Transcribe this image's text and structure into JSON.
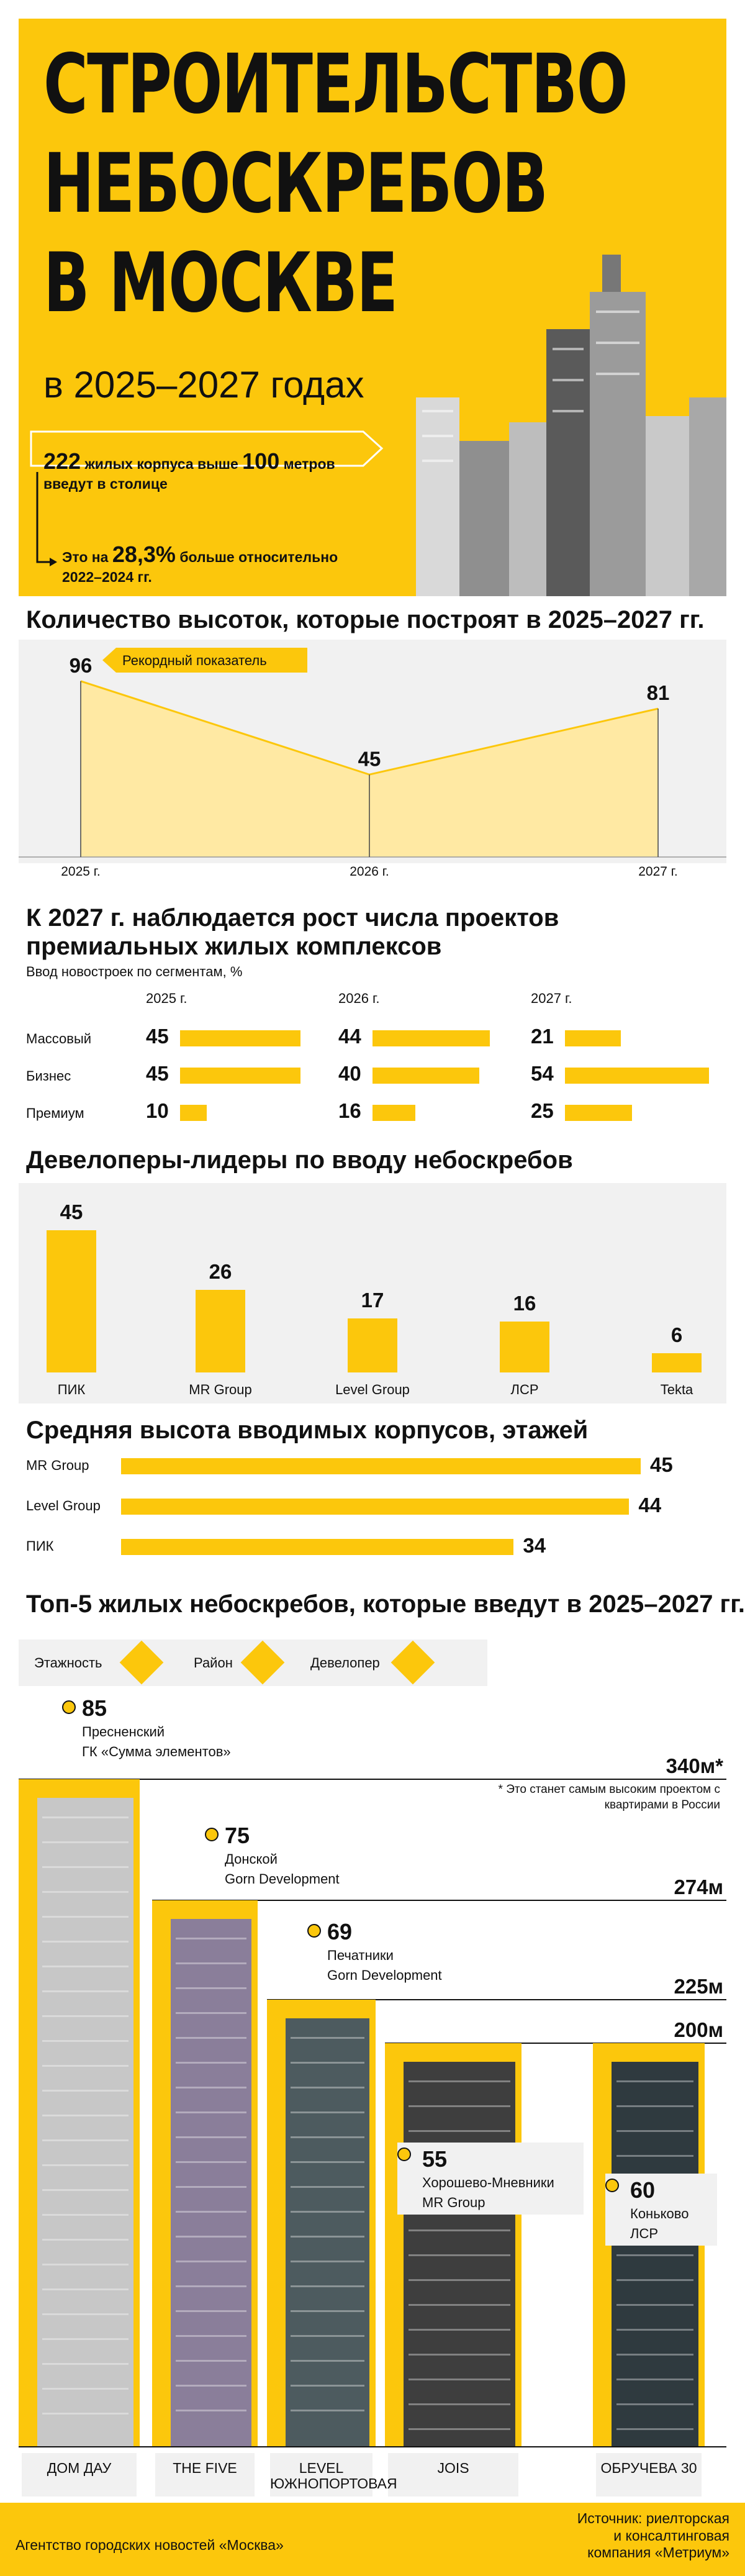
{
  "hero": {
    "title_lines": [
      "СТРОИТЕЛЬСТВО",
      "НЕБОСКРЕБОВ",
      "В МОСКВЕ"
    ],
    "subtitle": "в 2025–2027 годах",
    "fact1": {
      "number": "222",
      "text_a": "жилых корпуса выше",
      "number2": "100",
      "text_b": "метров",
      "text_c": "введут в столице"
    },
    "fact2": {
      "text_a": "Это на",
      "number": "28,3%",
      "text_b": "больше относительно",
      "text_c": "2022–2024 гг."
    }
  },
  "chart_data": [
    {
      "type": "area",
      "title": "Количество высоток, которые построят в 2025–2027 гг.",
      "categories": [
        "2025 г.",
        "2026 г.",
        "2027 г."
      ],
      "values": [
        96,
        45,
        81
      ],
      "ylim": [
        0,
        100
      ],
      "annotation": "Рекордный показатель",
      "color": "#fcc70c"
    },
    {
      "type": "bar",
      "title": "К 2027 г. наблюдается рост числа проектов премиальных жилых комплексов",
      "subtitle": "Ввод новостроек по сегментам, %",
      "years": [
        "2025 г.",
        "2026 г.",
        "2027 г."
      ],
      "categories": [
        "Массовый",
        "Бизнес",
        "Премиум"
      ],
      "series": [
        {
          "name": "2025 г.",
          "values": [
            45,
            45,
            10
          ]
        },
        {
          "name": "2026 г.",
          "values": [
            44,
            40,
            16
          ]
        },
        {
          "name": "2027 г.",
          "values": [
            21,
            54,
            25
          ]
        }
      ]
    },
    {
      "type": "bar",
      "title": "Девелоперы-лидеры по вводу небоскребов",
      "categories": [
        "ПИК",
        "MR Group",
        "Level Group",
        "ЛСР",
        "Tekta"
      ],
      "values": [
        45,
        26,
        17,
        16,
        6
      ]
    },
    {
      "type": "bar",
      "title": "Средняя высота вводимых корпусов, этажей",
      "categories": [
        "MR Group",
        "Level Group",
        "ПИК"
      ],
      "values": [
        45,
        44,
        34
      ]
    }
  ],
  "top5": {
    "title": "Топ-5 жилых небоскребов, которые введут в 2025–2027 гг.",
    "legend": [
      "Этажность",
      "Район",
      "Девелопер"
    ],
    "note": "* Это станет самым высоким проектом с квартирами в России",
    "buildings": [
      {
        "name": "ДОМ ДАУ",
        "floors": "85",
        "district": "Пресненский",
        "developer": "ГК «Сумма элементов»",
        "height": "340м*"
      },
      {
        "name": "THE FIVE",
        "floors": "75",
        "district": "Донской",
        "developer": "Gorn Development",
        "height": "274м"
      },
      {
        "name": "LEVEL ЮЖНОПОРТОВАЯ",
        "floors": "69",
        "district": "Печатники",
        "developer": "Gorn Development",
        "height": "225м"
      },
      {
        "name": "JOIS",
        "floors": "55",
        "district": "Хорошево-Мневники",
        "developer": "MR Group",
        "height": "200м"
      },
      {
        "name": "ОБРУЧЕВА 30",
        "floors": "60",
        "district": "Коньково",
        "developer": "ЛСР",
        "height": ""
      }
    ]
  },
  "footer": {
    "agency": "Агентство городских новостей «Москва»",
    "source_1": "Источник: риелторская",
    "source_2": "и консалтинговая",
    "source_3": "компания «Метриум»"
  },
  "icons": {
    "floors": "stairs-icon",
    "district": "pin-icon",
    "developer": "person-icon"
  },
  "colors": {
    "accent": "#fcc70c",
    "panel": "#f1f1f1",
    "text": "#111111"
  }
}
